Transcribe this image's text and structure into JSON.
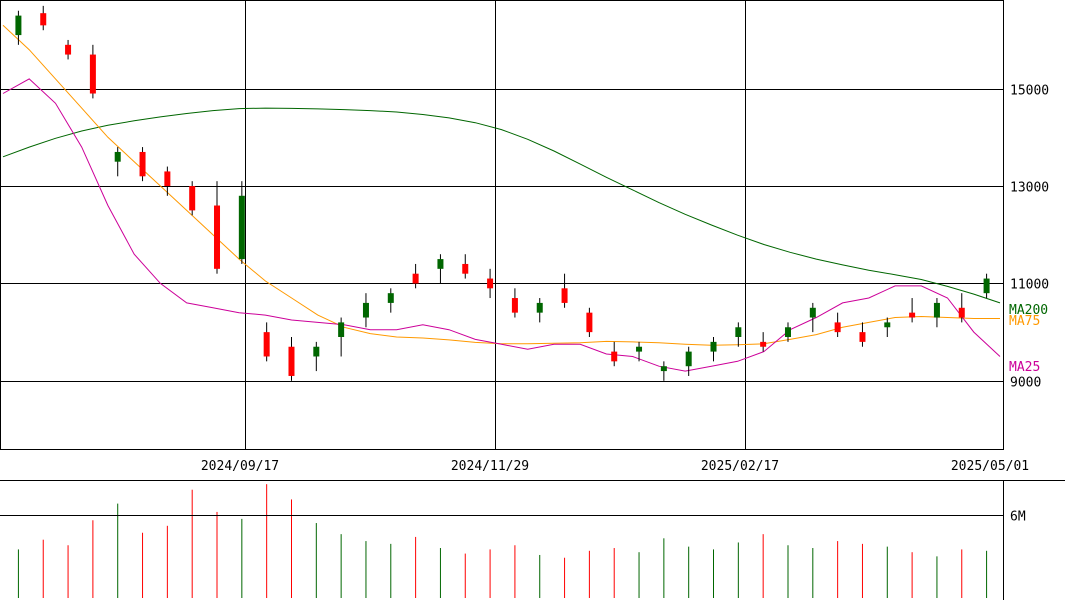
{
  "chart_data": {
    "type": "candlestick",
    "price_axis": {
      "tick_labels": [
        "15000",
        "13000",
        "11000",
        "9000"
      ],
      "tick_values": [
        15000,
        13000,
        11000,
        9000
      ],
      "range": [
        7600,
        16800
      ]
    },
    "date_axis": {
      "tick_labels": [
        "2024/09/17",
        "2024/11/29",
        "2025/02/17",
        "2025/05/01"
      ]
    },
    "volume_axis": {
      "tick_labels": [
        "6M"
      ],
      "tick_values": [
        6000000
      ],
      "range": [
        0,
        8500000
      ]
    },
    "moving_averages": [
      {
        "name": "MA200",
        "color": "#006600",
        "values": [
          13600,
          13800,
          13980,
          14130,
          14250,
          14340,
          14420,
          14490,
          14550,
          14590,
          14600,
          14595,
          14585,
          14570,
          14550,
          14520,
          14470,
          14400,
          14300,
          14160,
          13960,
          13720,
          13450,
          13180,
          12920,
          12660,
          12420,
          12200,
          11990,
          11800,
          11640,
          11500,
          11380,
          11270,
          11180,
          11080,
          10940,
          10780,
          10600
        ]
      },
      {
        "name": "MA75",
        "color": "#FF9900",
        "values": [
          16300,
          15800,
          15200,
          14600,
          14000,
          13500,
          13000,
          12500,
          12000,
          11500,
          11050,
          10700,
          10350,
          10100,
          9970,
          9900,
          9880,
          9840,
          9790,
          9760,
          9760,
          9770,
          9780,
          9810,
          9800,
          9780,
          9750,
          9730,
          9740,
          9760,
          9850,
          9950,
          10100,
          10200,
          10300,
          10320,
          10300,
          10280,
          10280
        ]
      },
      {
        "name": "MA25",
        "color": "#CC0099",
        "values": [
          14900,
          15200,
          14700,
          13800,
          12600,
          11600,
          11000,
          10600,
          10500,
          10400,
          10350,
          10250,
          10200,
          10150,
          10050,
          10050,
          10150,
          10050,
          9850,
          9750,
          9650,
          9750,
          9750,
          9550,
          9500,
          9300,
          9200,
          9300,
          9400,
          9600,
          10050,
          10300,
          10600,
          10700,
          10950,
          10950,
          10700,
          10000,
          9500
        ]
      }
    ],
    "candles": [
      {
        "o": 16100,
        "h": 16600,
        "l": 15900,
        "c": 16500
      },
      {
        "o": 16550,
        "h": 16700,
        "l": 16200,
        "c": 16300
      },
      {
        "o": 15900,
        "h": 16000,
        "l": 15600,
        "c": 15700
      },
      {
        "o": 15700,
        "h": 15900,
        "l": 14800,
        "c": 14900
      },
      {
        "o": 13500,
        "h": 13800,
        "l": 13200,
        "c": 13700
      },
      {
        "o": 13700,
        "h": 13800,
        "l": 13100,
        "c": 13200
      },
      {
        "o": 13300,
        "h": 13400,
        "l": 12800,
        "c": 13000
      },
      {
        "o": 13000,
        "h": 13100,
        "l": 12400,
        "c": 12500
      },
      {
        "o": 12600,
        "h": 13100,
        "l": 11200,
        "c": 11300
      },
      {
        "o": 11500,
        "h": 13100,
        "l": 11400,
        "c": 12800
      },
      {
        "o": 10000,
        "h": 10200,
        "l": 9400,
        "c": 9500
      },
      {
        "o": 9700,
        "h": 9900,
        "l": 9000,
        "c": 9100
      },
      {
        "o": 9500,
        "h": 9800,
        "l": 9200,
        "c": 9700
      },
      {
        "o": 9900,
        "h": 10300,
        "l": 9500,
        "c": 10200
      },
      {
        "o": 10300,
        "h": 10800,
        "l": 10100,
        "c": 10600
      },
      {
        "o": 10600,
        "h": 10900,
        "l": 10400,
        "c": 10800
      },
      {
        "o": 11200,
        "h": 11400,
        "l": 10900,
        "c": 11000
      },
      {
        "o": 11300,
        "h": 11600,
        "l": 11000,
        "c": 11500
      },
      {
        "o": 11400,
        "h": 11600,
        "l": 11100,
        "c": 11200
      },
      {
        "o": 11100,
        "h": 11300,
        "l": 10700,
        "c": 10900
      },
      {
        "o": 10700,
        "h": 10900,
        "l": 10300,
        "c": 10400
      },
      {
        "o": 10400,
        "h": 10700,
        "l": 10200,
        "c": 10600
      },
      {
        "o": 10900,
        "h": 11200,
        "l": 10500,
        "c": 10600
      },
      {
        "o": 10400,
        "h": 10500,
        "l": 9900,
        "c": 10000
      },
      {
        "o": 9600,
        "h": 9800,
        "l": 9300,
        "c": 9400
      },
      {
        "o": 9600,
        "h": 9800,
        "l": 9400,
        "c": 9700
      },
      {
        "o": 9200,
        "h": 9400,
        "l": 9000,
        "c": 9300
      },
      {
        "o": 9300,
        "h": 9700,
        "l": 9100,
        "c": 9600
      },
      {
        "o": 9600,
        "h": 9900,
        "l": 9400,
        "c": 9800
      },
      {
        "o": 9900,
        "h": 10200,
        "l": 9700,
        "c": 10100
      },
      {
        "o": 9800,
        "h": 10000,
        "l": 9600,
        "c": 9700
      },
      {
        "o": 9900,
        "h": 10200,
        "l": 9800,
        "c": 10100
      },
      {
        "o": 10300,
        "h": 10600,
        "l": 10000,
        "c": 10500
      },
      {
        "o": 10200,
        "h": 10400,
        "l": 9900,
        "c": 10000
      },
      {
        "o": 10000,
        "h": 10200,
        "l": 9700,
        "c": 9800
      },
      {
        "o": 10100,
        "h": 10300,
        "l": 9900,
        "c": 10200
      },
      {
        "o": 10400,
        "h": 10700,
        "l": 10200,
        "c": 10300
      },
      {
        "o": 10300,
        "h": 10700,
        "l": 10100,
        "c": 10600
      },
      {
        "o": 10500,
        "h": 10800,
        "l": 10200,
        "c": 10300
      },
      {
        "o": 10800,
        "h": 11200,
        "l": 10700,
        "c": 11100
      }
    ],
    "volumes": [
      3500000,
      4200000,
      3800000,
      5600000,
      6800000,
      4700000,
      5200000,
      7800000,
      6200000,
      5700000,
      8200000,
      7100000,
      5400000,
      4600000,
      4100000,
      3900000,
      4400000,
      3600000,
      3200000,
      3500000,
      3800000,
      3100000,
      2900000,
      3400000,
      3600000,
      3300000,
      4300000,
      3700000,
      3500000,
      4000000,
      4600000,
      3800000,
      3600000,
      4100000,
      3900000,
      3700000,
      3300000,
      3000000,
      3500000,
      3400000
    ]
  }
}
